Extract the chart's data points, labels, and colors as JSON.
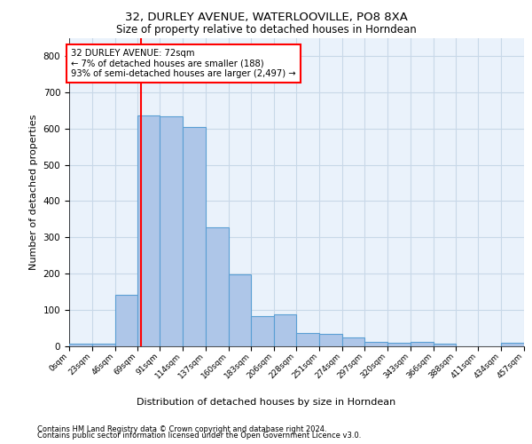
{
  "title1": "32, DURLEY AVENUE, WATERLOOVILLE, PO8 8XA",
  "title2": "Size of property relative to detached houses in Horndean",
  "xlabel": "Distribution of detached houses by size in Horndean",
  "ylabel": "Number of detached properties",
  "bar_edges": [
    0,
    23,
    46,
    69,
    91,
    114,
    137,
    160,
    183,
    206,
    228,
    251,
    274,
    297,
    320,
    343,
    366,
    388,
    411,
    434,
    457
  ],
  "bar_heights": [
    7,
    8,
    143,
    635,
    633,
    605,
    328,
    198,
    84,
    87,
    37,
    35,
    24,
    12,
    11,
    12,
    8,
    0,
    0,
    9
  ],
  "bar_color": "#aec6e8",
  "bar_edge_color": "#5a9fd4",
  "vline_x": 72,
  "vline_color": "red",
  "annotation_text": "32 DURLEY AVENUE: 72sqm\n← 7% of detached houses are smaller (188)\n93% of semi-detached houses are larger (2,497) →",
  "annotation_box_color": "red",
  "annotation_bg": "white",
  "ylim": [
    0,
    850
  ],
  "yticks": [
    0,
    100,
    200,
    300,
    400,
    500,
    600,
    700,
    800
  ],
  "tick_labels": [
    "0sqm",
    "23sqm",
    "46sqm",
    "69sqm",
    "91sqm",
    "114sqm",
    "137sqm",
    "160sqm",
    "183sqm",
    "206sqm",
    "228sqm",
    "251sqm",
    "274sqm",
    "297sqm",
    "320sqm",
    "343sqm",
    "366sqm",
    "388sqm",
    "411sqm",
    "434sqm",
    "457sqm"
  ],
  "grid_color": "#c8d8e8",
  "bg_color": "#eaf2fb",
  "footnote1": "Contains HM Land Registry data © Crown copyright and database right 2024.",
  "footnote2": "Contains public sector information licensed under the Open Government Licence v3.0."
}
